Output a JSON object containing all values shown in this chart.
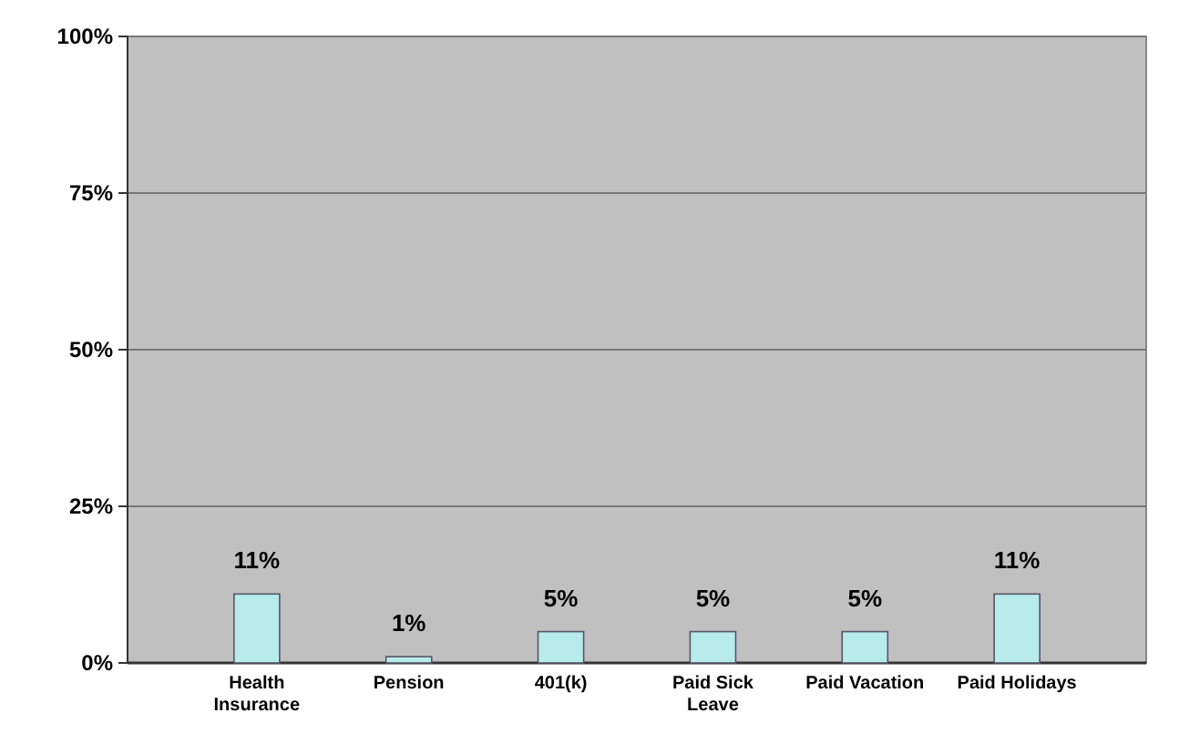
{
  "chart_data": {
    "type": "bar",
    "categories": [
      "Health Insurance",
      "Pension",
      "401(k)",
      "Paid Sick Leave",
      "Paid Vacation",
      "Paid Holidays"
    ],
    "values": [
      11,
      1,
      5,
      5,
      5,
      11
    ],
    "value_labels": [
      "11%",
      "1%",
      "5%",
      "5%",
      "5%",
      "11%"
    ],
    "color": "#b8ecec",
    "ylim": [
      0,
      100
    ],
    "yticks": [
      {
        "value": 0,
        "label": "0%"
      },
      {
        "value": 25,
        "label": "25%"
      },
      {
        "value": 50,
        "label": "50%"
      },
      {
        "value": 75,
        "label": "75%"
      },
      {
        "value": 100,
        "label": "100%"
      }
    ],
    "grid": "y"
  }
}
